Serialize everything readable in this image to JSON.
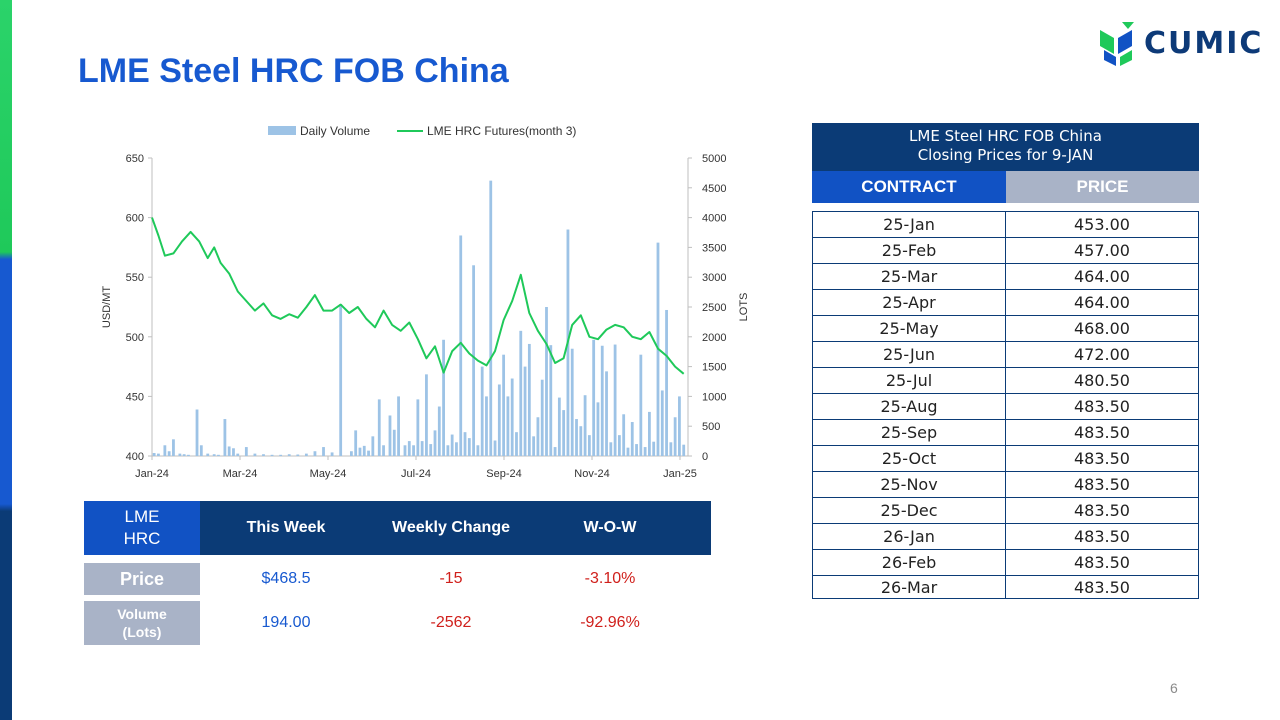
{
  "slide": {
    "title": "LME Steel HRC FOB China",
    "page_number": "6",
    "accent_colors": {
      "navy": "#0b3b76",
      "blue": "#1152c4",
      "title_blue": "#1759d0",
      "gray": "#a9b3c7",
      "green": "#1fc95a",
      "red": "#d0201c"
    }
  },
  "logo": {
    "text": "CUMIC",
    "icon": "cumic-leaf-logo-icon"
  },
  "chart_data": {
    "type": "bar+line",
    "legend": {
      "placement": "top",
      "items": [
        "Daily Volume",
        "LME HRC Futures(month 3)"
      ]
    },
    "ylabel_left": "USD/MT",
    "ylabel_right": "LOTS",
    "ylim_left": [
      400,
      650
    ],
    "ylim_right": [
      0,
      5000
    ],
    "yticks_left": [
      "400",
      "450",
      "500",
      "550",
      "600",
      "650"
    ],
    "yticks_right": [
      "0",
      "500",
      "1000",
      "1500",
      "2000",
      "2500",
      "3000",
      "3500",
      "4000",
      "4500",
      "5000"
    ],
    "xticks": [
      "Jan-24",
      "Mar-24",
      "May-24",
      "Jul-24",
      "Sep-24",
      "Nov-24",
      "Jan-25"
    ],
    "x_range": [
      0,
      250
    ],
    "series_volume": {
      "name": "Daily Volume",
      "color": "#9dc3e6",
      "x": [
        1,
        3,
        6,
        8,
        10,
        13,
        15,
        17,
        21,
        23,
        26,
        29,
        31,
        34,
        36,
        38,
        40,
        44,
        48,
        52,
        56,
        60,
        64,
        68,
        72,
        76,
        80,
        84,
        88,
        93,
        95,
        97,
        99,
        101,
        103,
        106,
        108,
        111,
        113,
        115,
        118,
        120,
        122,
        124,
        126,
        128,
        130,
        132,
        134,
        136,
        138,
        140,
        142,
        144,
        146,
        148,
        150,
        152,
        154,
        156,
        158,
        160,
        162,
        164,
        166,
        168,
        170,
        172,
        174,
        176,
        178,
        180,
        182,
        184,
        186,
        188,
        190,
        192,
        194,
        196,
        198,
        200,
        202,
        204,
        206,
        208,
        210,
        212,
        214,
        216,
        218,
        220,
        222,
        224,
        226,
        228,
        230,
        232,
        234,
        236,
        238,
        240,
        242,
        244,
        246,
        248
      ],
      "values": [
        50,
        40,
        180,
        80,
        280,
        40,
        30,
        20,
        780,
        180,
        40,
        30,
        20,
        620,
        160,
        130,
        40,
        150,
        40,
        30,
        20,
        20,
        30,
        25,
        40,
        80,
        150,
        60,
        2550,
        80,
        430,
        140,
        170,
        90,
        330,
        950,
        180,
        680,
        440,
        1000,
        180,
        250,
        180,
        950,
        250,
        1370,
        200,
        430,
        830,
        1950,
        180,
        360,
        230,
        3700,
        400,
        300,
        3200,
        180,
        1500,
        1000,
        4620,
        260,
        1200,
        1700,
        1000,
        1300,
        400,
        2100,
        1500,
        1880,
        330,
        650,
        1280,
        2500,
        1860,
        150,
        980,
        770,
        3800,
        1800,
        620,
        500,
        1020,
        350,
        1950,
        900,
        1850,
        1420,
        230,
        1870,
        350,
        700,
        140,
        570,
        200,
        1700,
        150,
        740,
        240,
        3580,
        1100,
        2450,
        230,
        650,
        1000,
        190
      ]
    },
    "series_price": {
      "name": "LME HRC Futures(month 3)",
      "color": "#1fc95a",
      "x": [
        0,
        3,
        6,
        10,
        14,
        18,
        22,
        26,
        29,
        32,
        36,
        40,
        44,
        48,
        52,
        56,
        60,
        64,
        68,
        72,
        76,
        80,
        84,
        88,
        92,
        96,
        100,
        104,
        108,
        112,
        116,
        120,
        124,
        128,
        132,
        136,
        140,
        144,
        148,
        152,
        156,
        160,
        164,
        168,
        172,
        176,
        180,
        184,
        188,
        192,
        196,
        200,
        204,
        208,
        212,
        216,
        220,
        224,
        228,
        232,
        236,
        240,
        244,
        248
      ],
      "values": [
        600,
        585,
        568,
        570,
        580,
        588,
        580,
        566,
        575,
        562,
        553,
        538,
        530,
        522,
        528,
        518,
        515,
        519,
        516,
        525,
        535,
        522,
        522,
        527,
        520,
        525,
        515,
        508,
        522,
        510,
        505,
        512,
        498,
        482,
        492,
        470,
        488,
        495,
        486,
        480,
        476,
        488,
        514,
        530,
        552,
        520,
        505,
        494,
        478,
        482,
        510,
        518,
        500,
        498,
        506,
        510,
        508,
        500,
        498,
        504,
        490,
        484,
        475,
        469
      ]
    }
  },
  "price_table": {
    "header_line1": "LME Steel HRC FOB China",
    "header_line2": "Closing Prices for 9-JAN",
    "col_contract": "CONTRACT",
    "col_price": "PRICE",
    "rows": [
      {
        "contract": "25-Jan",
        "price": "453.00"
      },
      {
        "contract": "25-Feb",
        "price": "457.00"
      },
      {
        "contract": "25-Mar",
        "price": "464.00"
      },
      {
        "contract": "25-Apr",
        "price": "464.00"
      },
      {
        "contract": "25-May",
        "price": "468.00"
      },
      {
        "contract": "25-Jun",
        "price": "472.00"
      },
      {
        "contract": "25-Jul",
        "price": "480.50"
      },
      {
        "contract": "25-Aug",
        "price": "483.50"
      },
      {
        "contract": "25-Sep",
        "price": "483.50"
      },
      {
        "contract": "25-Oct",
        "price": "483.50"
      },
      {
        "contract": "25-Nov",
        "price": "483.50"
      },
      {
        "contract": "25-Dec",
        "price": "483.50"
      },
      {
        "contract": "26-Jan",
        "price": "483.50"
      },
      {
        "contract": "26-Feb",
        "price": "483.50"
      },
      {
        "contract": "26-Mar",
        "price": "483.50"
      }
    ]
  },
  "summary_table": {
    "corner_line1": "LME",
    "corner_line2": "HRC",
    "col_this_week": "This Week",
    "col_weekly_change": "Weekly Change",
    "col_wow": "W-O-W",
    "price_label": "Price",
    "price_this_week": "$468.5",
    "price_change": "-15",
    "price_wow": "-3.10%",
    "volume_label_line1": "Volume",
    "volume_label_line2": "(Lots)",
    "volume_this_week": "194.00",
    "volume_change": "-2562",
    "volume_wow": "-92.96%"
  }
}
